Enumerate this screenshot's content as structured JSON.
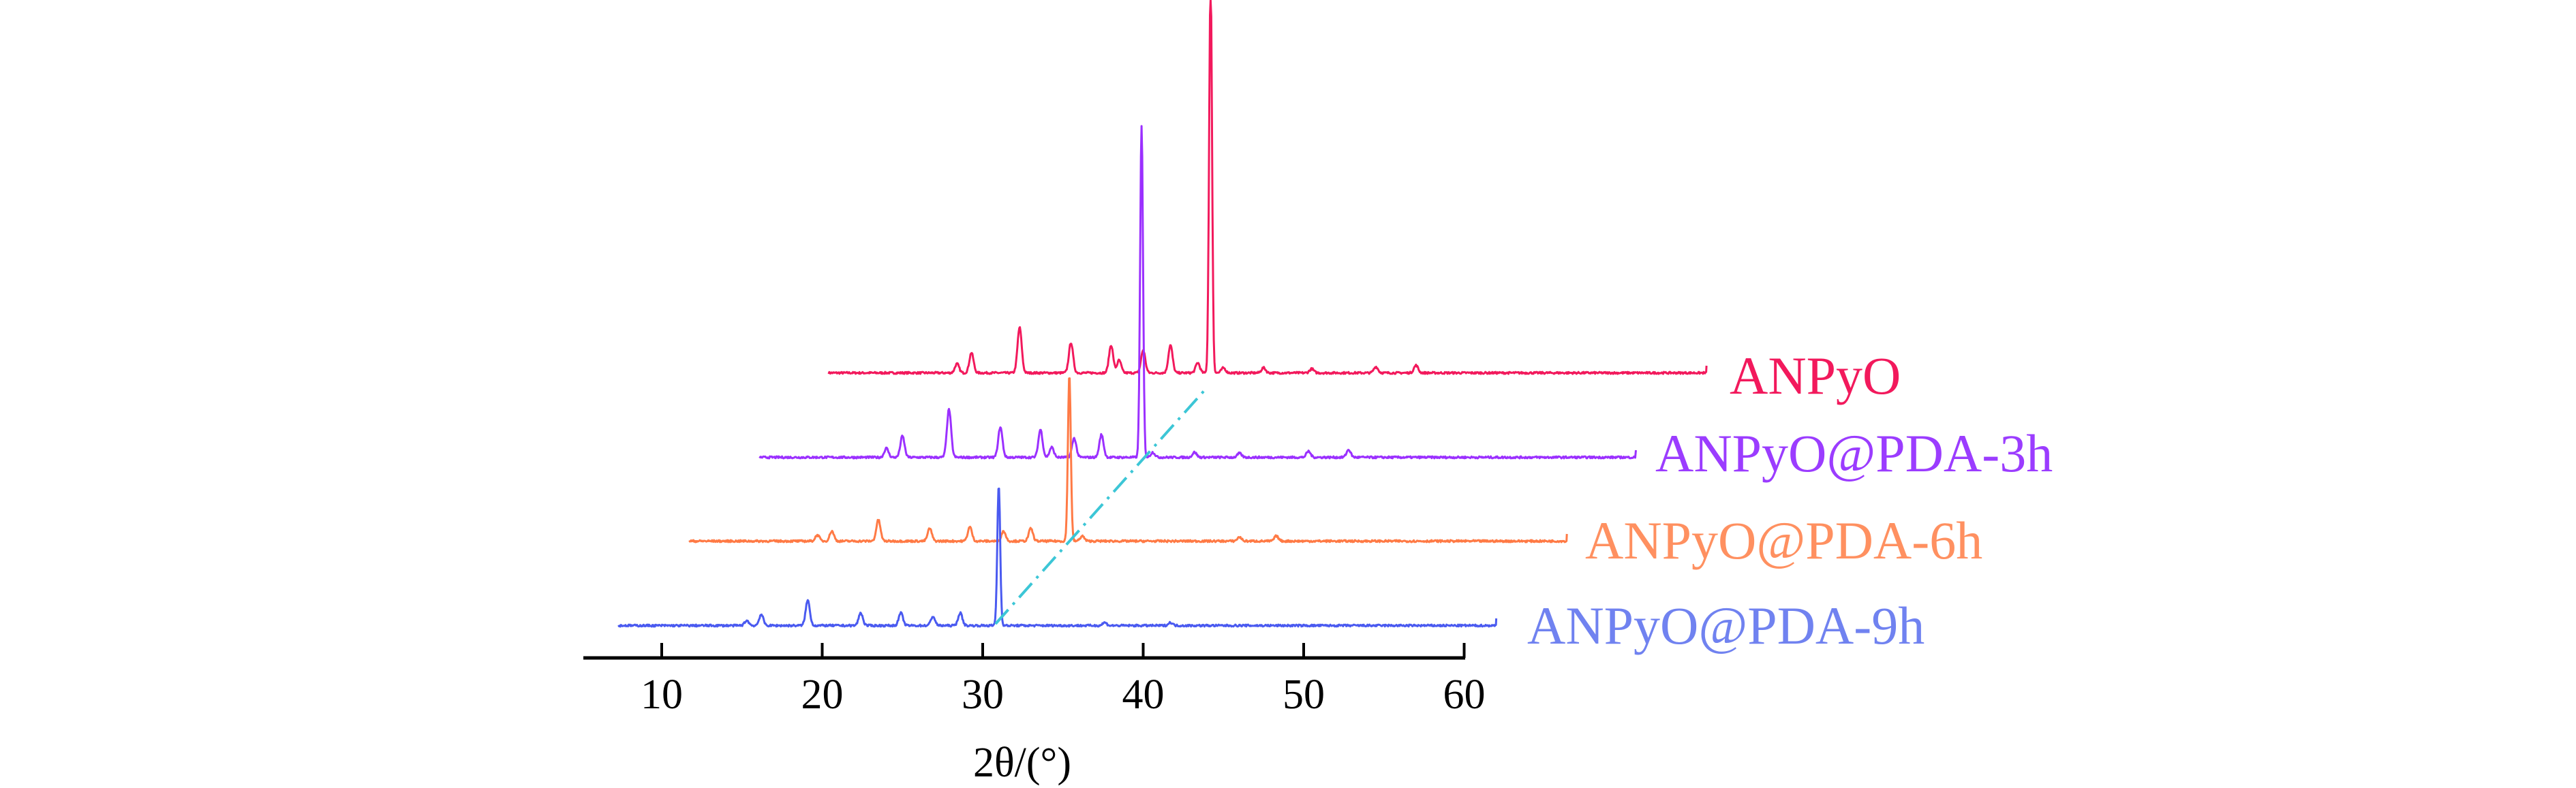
{
  "chart_data": {
    "type": "line",
    "title": "",
    "xlabel": "2θ/(°)",
    "ylabel": "",
    "xlim": [
      5,
      62
    ],
    "xticks": [
      10,
      20,
      30,
      40,
      50,
      60
    ],
    "grid": false,
    "legend": "right, labels beside each trace",
    "series": [
      {
        "name": "ANPyO",
        "color": "#f2195c",
        "label_color": "#f2195c",
        "x_range": [
          20.4,
          75.1
        ],
        "peaks": [
          [
            28.4,
            18
          ],
          [
            29.3,
            40
          ],
          [
            32.3,
            90
          ],
          [
            35.5,
            60
          ],
          [
            38.0,
            55
          ],
          [
            38.5,
            25
          ],
          [
            40.0,
            45
          ],
          [
            41.7,
            55
          ],
          [
            43.4,
            20
          ],
          [
            44.2,
            780
          ],
          [
            45.0,
            10
          ],
          [
            47.5,
            10
          ],
          [
            50.5,
            8
          ],
          [
            54.5,
            12
          ],
          [
            57.0,
            15
          ]
        ]
      },
      {
        "name": "ANPyO@PDA-3h",
        "color": "#9b30ff",
        "label_color": "#9b3cff",
        "x_range": [
          16.1,
          70.7
        ],
        "peaks": [
          [
            24.0,
            18
          ],
          [
            25.0,
            42
          ],
          [
            27.9,
            95
          ],
          [
            31.1,
            60
          ],
          [
            33.6,
            55
          ],
          [
            34.3,
            20
          ],
          [
            35.7,
            38
          ],
          [
            37.4,
            45
          ],
          [
            39.9,
            655
          ],
          [
            40.6,
            10
          ],
          [
            43.2,
            10
          ],
          [
            46.0,
            8
          ],
          [
            50.3,
            12
          ],
          [
            52.8,
            15
          ]
        ]
      },
      {
        "name": "ANPyO@PDA-6h",
        "color": "#ff7a45",
        "label_color": "#ff9060",
        "x_range": [
          11.7,
          66.4
        ],
        "peaks": [
          [
            19.7,
            12
          ],
          [
            20.6,
            20
          ],
          [
            23.5,
            42
          ],
          [
            26.7,
            25
          ],
          [
            29.2,
            28
          ],
          [
            31.3,
            20
          ],
          [
            33.0,
            25
          ],
          [
            35.4,
            330
          ],
          [
            36.2,
            10
          ],
          [
            46.0,
            8
          ],
          [
            48.3,
            10
          ]
        ]
      },
      {
        "name": "ANPyO@PDA-9h",
        "color": "#4a5af0",
        "label_color": "#7082f0",
        "x_range": [
          7.3,
          62.0
        ],
        "peaks": [
          [
            15.3,
            10
          ],
          [
            16.2,
            22
          ],
          [
            19.1,
            50
          ],
          [
            22.4,
            25
          ],
          [
            24.9,
            25
          ],
          [
            26.9,
            18
          ],
          [
            28.6,
            25
          ],
          [
            31.0,
            278
          ],
          [
            37.6,
            6
          ],
          [
            41.7,
            6
          ]
        ]
      }
    ],
    "guide_line": {
      "style": "dash-dot",
      "color": "#3cc6d6",
      "x_from": 30.8,
      "x_to": 43.9,
      "from_series": "ANPyO@PDA-9h",
      "to_series": "ANPyO"
    }
  }
}
